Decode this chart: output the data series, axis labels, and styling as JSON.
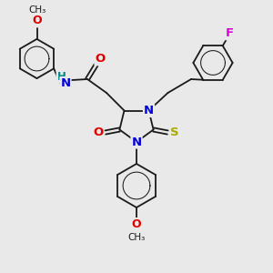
{
  "background_color": "#e9e9e9",
  "fig_width": 3.0,
  "fig_height": 3.0,
  "dpi": 100,
  "bond_color": "#1a1a1a",
  "bond_lw": 1.3,
  "atom_colors": {
    "N": "#0000dd",
    "O": "#dd0000",
    "S": "#aaaa00",
    "F": "#dd00dd",
    "H": "#008888",
    "C": "#1a1a1a"
  }
}
